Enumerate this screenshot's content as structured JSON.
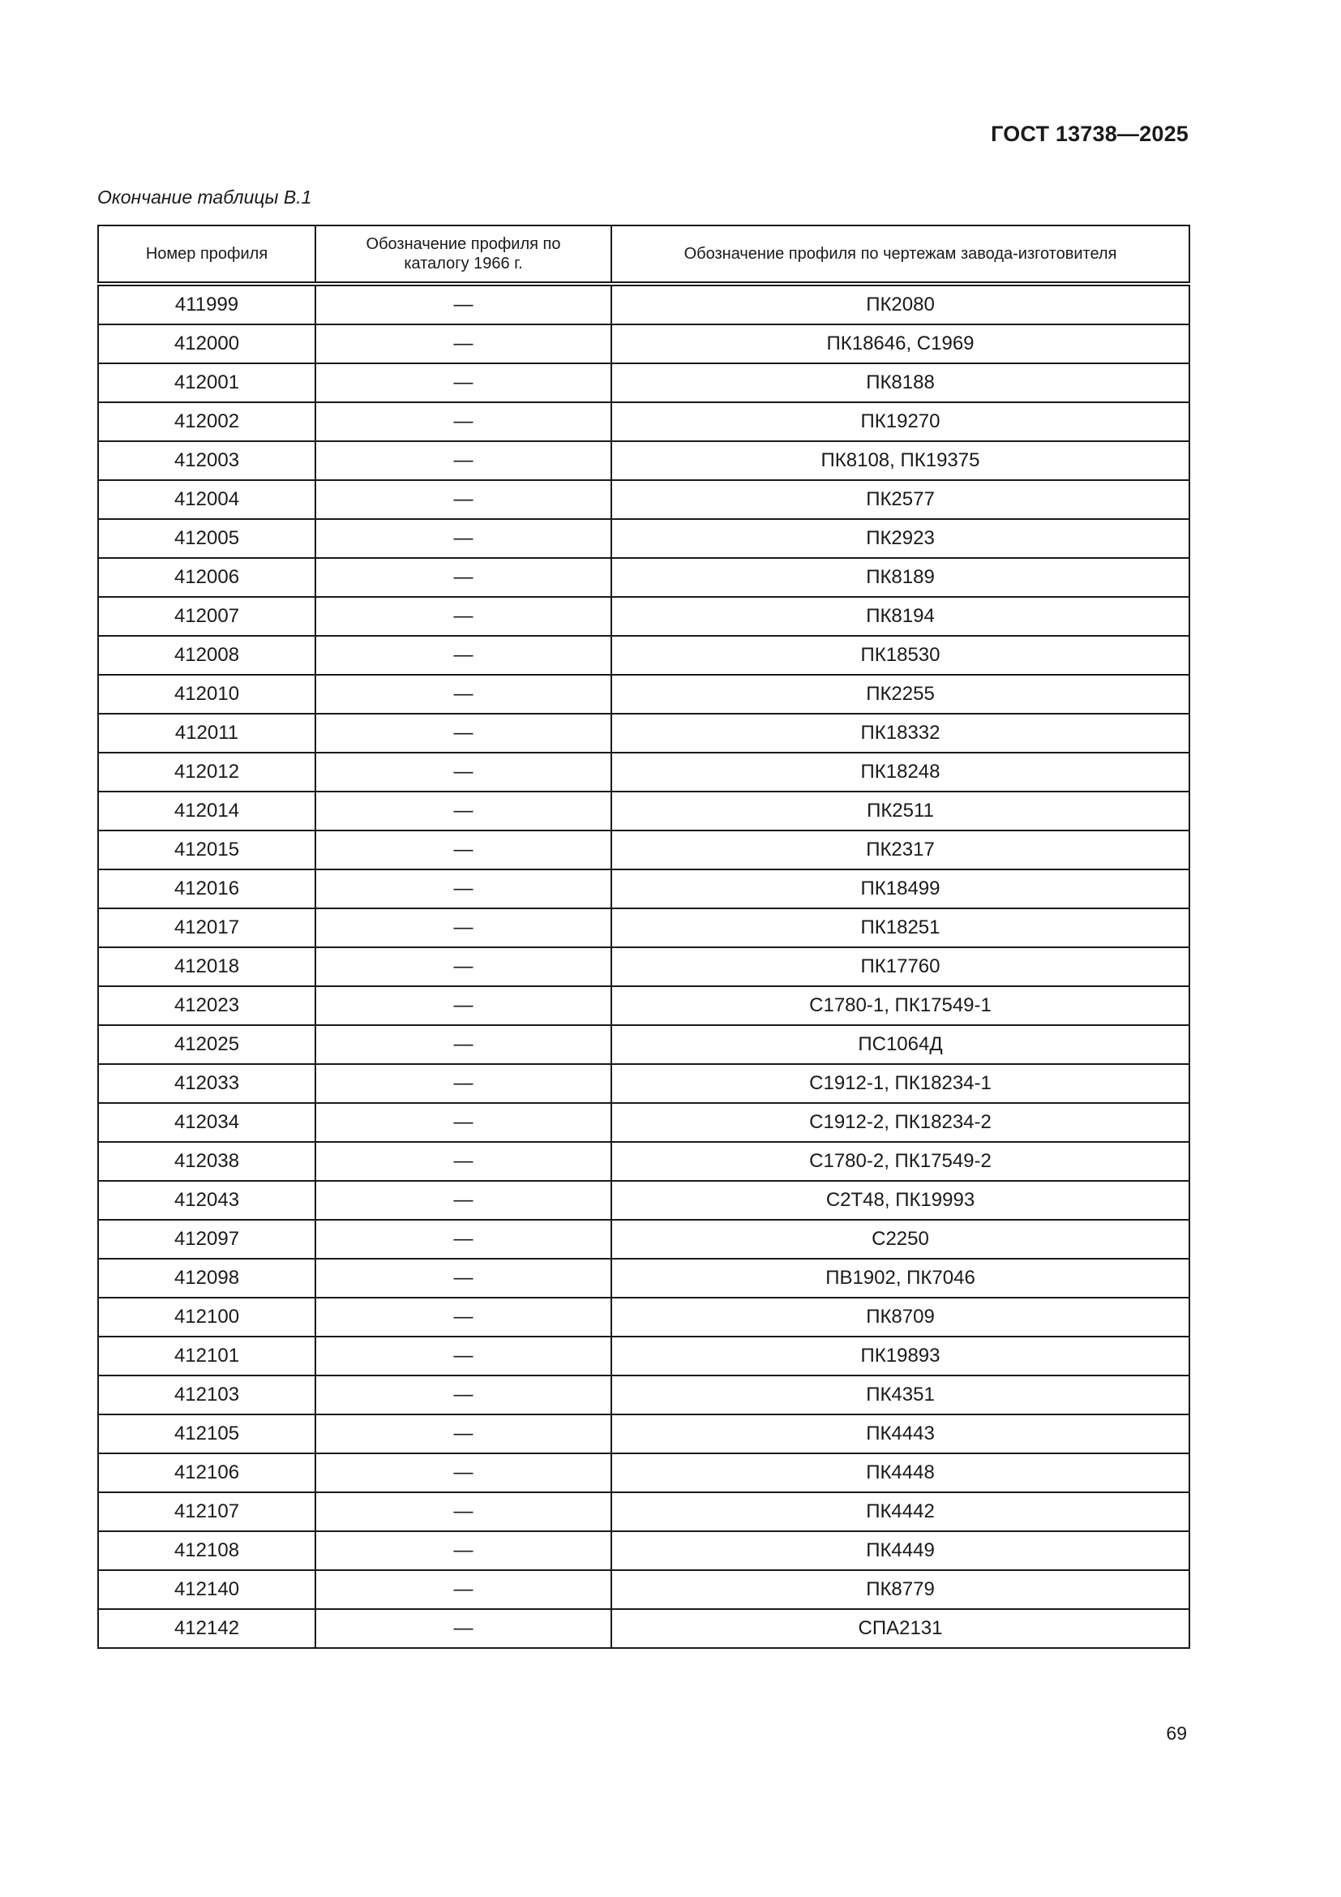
{
  "header": {
    "doc_code": "ГОСТ 13738—2025"
  },
  "caption": "Окончание таблицы В.1",
  "table": {
    "columns": [
      "Номер профиля",
      "Обозначение профиля по каталогу 1966 г.",
      "Обозначение профиля по чертежам завода-изготовителя"
    ],
    "rows": [
      [
        "411999",
        "—",
        "ПК2080"
      ],
      [
        "412000",
        "—",
        "ПК18646, С1969"
      ],
      [
        "412001",
        "—",
        "ПК8188"
      ],
      [
        "412002",
        "—",
        "ПК19270"
      ],
      [
        "412003",
        "—",
        "ПК8108, ПК19375"
      ],
      [
        "412004",
        "—",
        "ПК2577"
      ],
      [
        "412005",
        "—",
        "ПК2923"
      ],
      [
        "412006",
        "—",
        "ПК8189"
      ],
      [
        "412007",
        "—",
        "ПК8194"
      ],
      [
        "412008",
        "—",
        "ПК18530"
      ],
      [
        "412010",
        "—",
        "ПК2255"
      ],
      [
        "412011",
        "—",
        "ПК18332"
      ],
      [
        "412012",
        "—",
        "ПК18248"
      ],
      [
        "412014",
        "—",
        "ПК2511"
      ],
      [
        "412015",
        "—",
        "ПК2317"
      ],
      [
        "412016",
        "—",
        "ПК18499"
      ],
      [
        "412017",
        "—",
        "ПК18251"
      ],
      [
        "412018",
        "—",
        "ПК17760"
      ],
      [
        "412023",
        "—",
        "С1780-1, ПК17549-1"
      ],
      [
        "412025",
        "—",
        "ПС1064Д"
      ],
      [
        "412033",
        "—",
        "С1912-1, ПК18234-1"
      ],
      [
        "412034",
        "—",
        "С1912-2, ПК18234-2"
      ],
      [
        "412038",
        "—",
        "С1780-2, ПК17549-2"
      ],
      [
        "412043",
        "—",
        "С2Т48, ПК19993"
      ],
      [
        "412097",
        "—",
        "С2250"
      ],
      [
        "412098",
        "—",
        "ПВ1902, ПК7046"
      ],
      [
        "412100",
        "—",
        "ПК8709"
      ],
      [
        "412101",
        "—",
        "ПК19893"
      ],
      [
        "412103",
        "—",
        "ПК4351"
      ],
      [
        "412105",
        "—",
        "ПК4443"
      ],
      [
        "412106",
        "—",
        "ПК4448"
      ],
      [
        "412107",
        "—",
        "ПК4442"
      ],
      [
        "412108",
        "—",
        "ПК4449"
      ],
      [
        "412140",
        "—",
        "ПК8779"
      ],
      [
        "412142",
        "—",
        "СПА2131"
      ]
    ]
  },
  "page_number": "69"
}
